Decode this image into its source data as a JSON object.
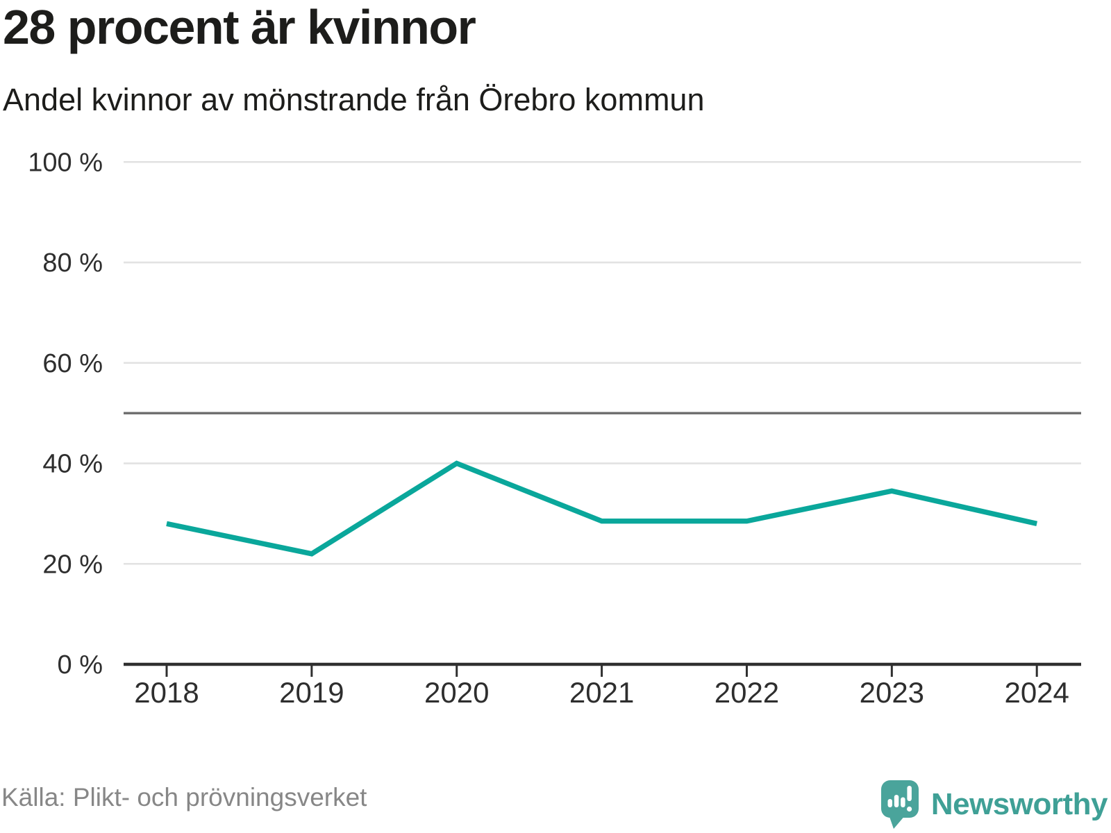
{
  "chart_data": {
    "type": "line",
    "title": "28 procent är kvinnor",
    "subtitle": "Andel kvinnor av mönstrande från Örebro kommun",
    "categories": [
      "2018",
      "2019",
      "2020",
      "2021",
      "2022",
      "2023",
      "2024"
    ],
    "series": [
      {
        "name": "Andel kvinnor av mönstrande",
        "values": [
          28,
          22,
          40,
          28.5,
          28.5,
          34.5,
          28
        ]
      }
    ],
    "xlabel": "",
    "ylabel": "",
    "ylim": [
      0,
      100
    ],
    "yticks": [
      0,
      20,
      40,
      60,
      80,
      100
    ],
    "ytick_suffix": " %",
    "reference_line": 50,
    "grid": true,
    "legend": "none",
    "line_color": "#0aa79b"
  },
  "footer": {
    "source": "Källa: Plikt- och prövningsverket",
    "brand": "Newsworthy"
  },
  "colors": {
    "accent": "#0aa79b",
    "brand_teal": "#4aa49b",
    "brand_text": "#3fa096",
    "text": "#1d1d1b",
    "muted_text": "#878787",
    "gridline": "#e2e2e2",
    "reference_line": "#6b6b6b",
    "axis": "#2f2f2f"
  }
}
